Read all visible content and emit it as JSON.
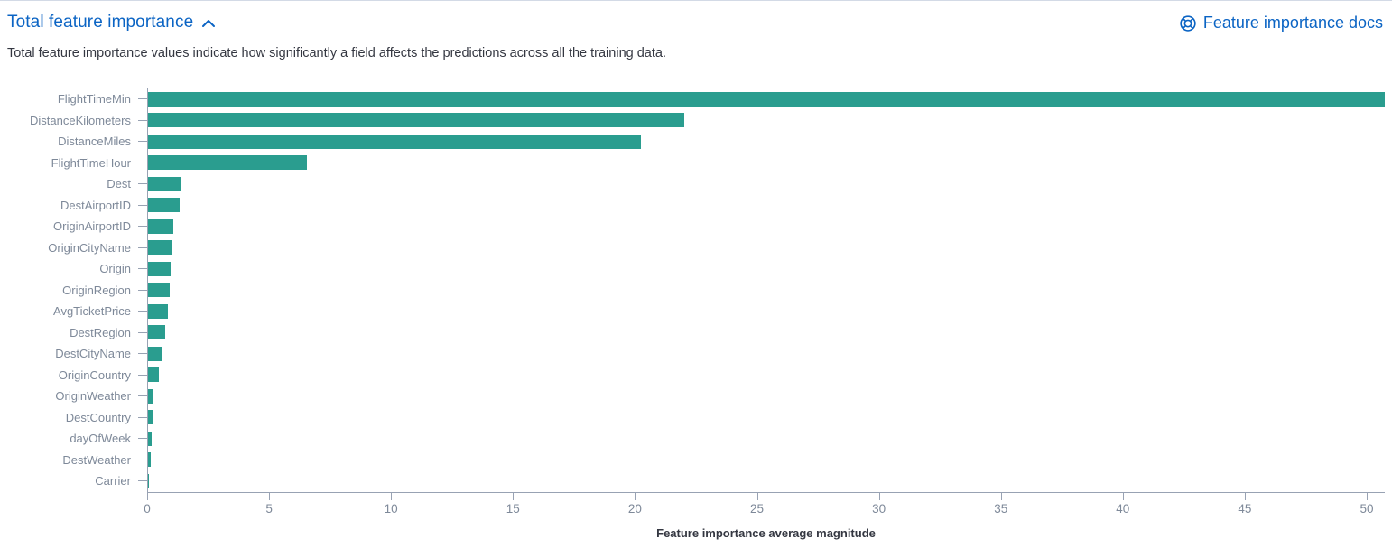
{
  "header": {
    "title": "Total feature importance",
    "docs_link_label": "Feature importance docs",
    "collapse_icon": "chevron-up-icon",
    "docs_icon": "lifebuoy-icon"
  },
  "description": "Total feature importance values indicate how significantly a field affects the predictions across all the training data.",
  "colors": {
    "bar": "#2A9D8F",
    "link": "#0B64C4",
    "axis_line": "#98A2B3",
    "axis_label": "#7E8999",
    "text": "#343741",
    "panel_border": "#D3DAE6"
  },
  "chart_data": {
    "type": "bar",
    "orientation": "horizontal",
    "title": "",
    "categories": [
      "FlightTimeMin",
      "DistanceKilometers",
      "DistanceMiles",
      "FlightTimeHour",
      "Dest",
      "DestAirportID",
      "OriginAirportID",
      "OriginCityName",
      "Origin",
      "OriginRegion",
      "AvgTicketPrice",
      "DestRegion",
      "DestCityName",
      "OriginCountry",
      "OriginWeather",
      "DestCountry",
      "dayOfWeek",
      "DestWeather",
      "Carrier"
    ],
    "values": [
      50.7,
      22.0,
      20.2,
      6.5,
      1.35,
      1.3,
      1.05,
      0.95,
      0.92,
      0.88,
      0.8,
      0.72,
      0.6,
      0.43,
      0.21,
      0.17,
      0.15,
      0.11,
      0.04
    ],
    "xlabel": "Feature importance average magnitude",
    "ylabel": "",
    "xlim": [
      0,
      50.74
    ],
    "xticks": [
      0,
      5,
      10,
      15,
      20,
      25,
      30,
      35,
      40,
      45,
      50
    ],
    "grid": false,
    "legend": false,
    "bar_color": "#2A9D8F"
  }
}
